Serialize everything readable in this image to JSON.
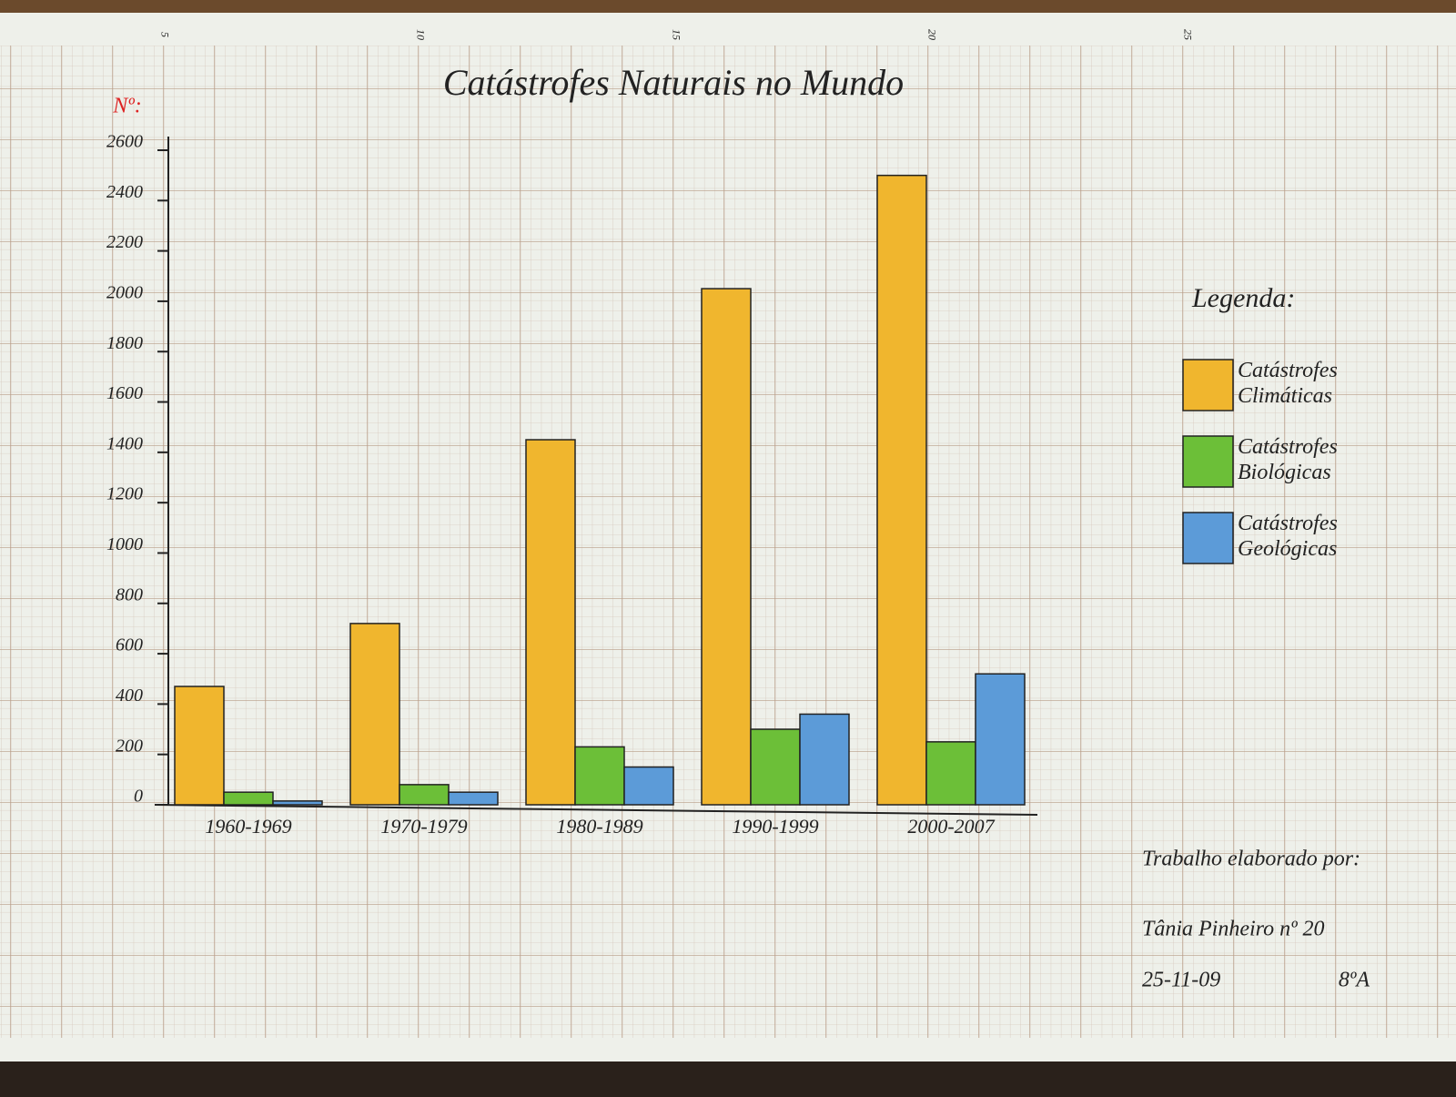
{
  "chart_data": {
    "type": "bar",
    "title": "Catástrofes Naturais no Mundo",
    "y_label": "Nº:",
    "categories": [
      "1960-1969",
      "1970-1979",
      "1980-1989",
      "1990-1999",
      "2000-2007"
    ],
    "series": [
      {
        "name": "Catástrofes Climáticas",
        "color": "#f0b62e",
        "values": [
          470,
          720,
          1450,
          2050,
          2500
        ]
      },
      {
        "name": "Catástrofes Biológicas",
        "color": "#6cbf38",
        "values": [
          50,
          80,
          230,
          300,
          250
        ]
      },
      {
        "name": "Catástrofes Geológicas",
        "color": "#5c9bd8",
        "values": [
          15,
          50,
          150,
          360,
          520
        ]
      }
    ],
    "ylim": [
      0,
      2600
    ],
    "yticks": [
      0,
      200,
      400,
      600,
      800,
      1000,
      1200,
      1400,
      1600,
      1800,
      2000,
      2200,
      2400,
      2600
    ],
    "legend_title": "Legenda:",
    "legend": "right"
  },
  "ruler_marks": [
    5,
    10,
    15,
    20,
    25
  ],
  "author": {
    "heading": "Trabalho elaborado por:",
    "name": "Tânia Pinheiro nº 20",
    "date": "25-11-09",
    "class": "8ºA"
  }
}
